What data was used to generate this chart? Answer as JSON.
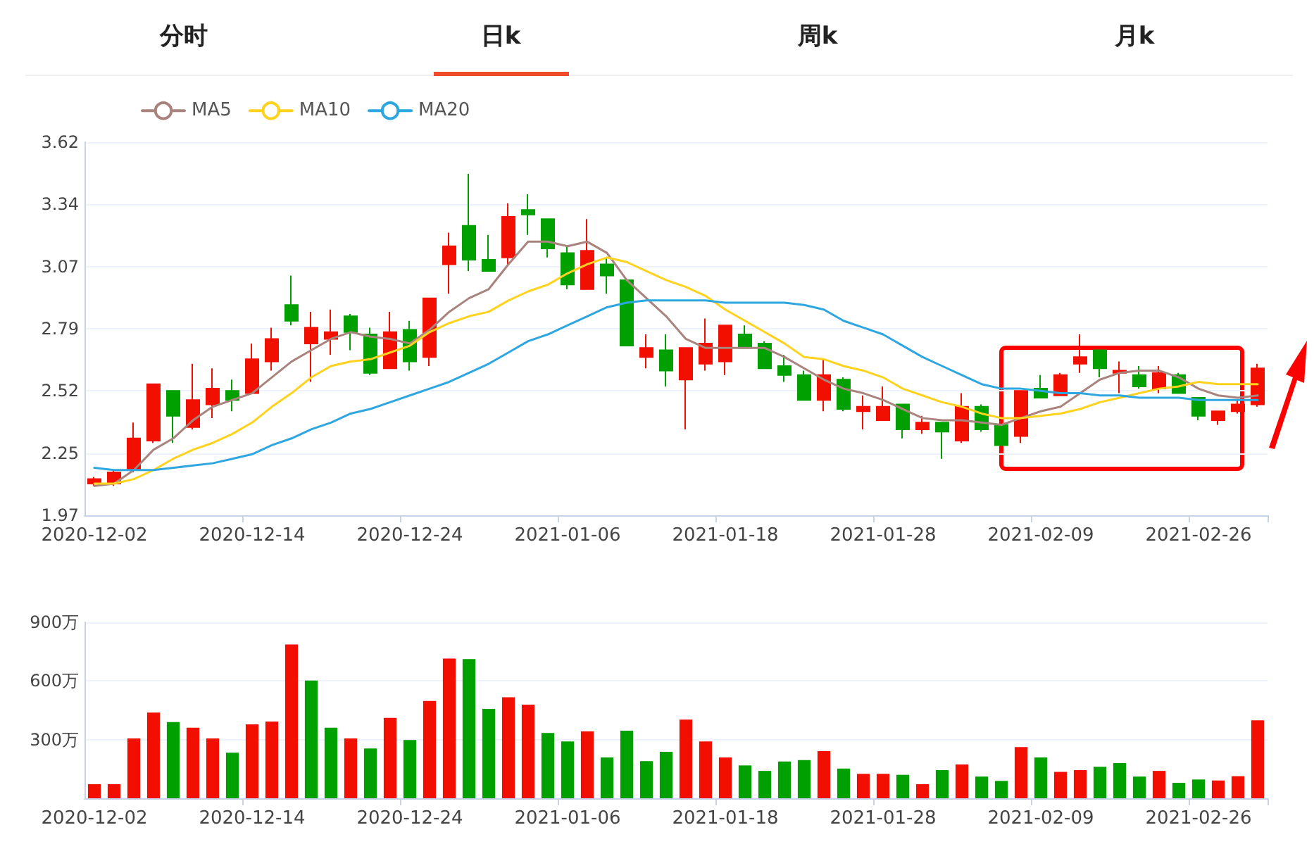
{
  "chart_data": [
    {
      "type": "candlestick",
      "annotations": [
        "分时",
        "日k",
        "周k",
        "月k"
      ],
      "categories": [
        "2020-12-02",
        null,
        null,
        null,
        null,
        null,
        null,
        null,
        "2020-12-14",
        null,
        null,
        null,
        null,
        null,
        null,
        null,
        "2020-12-24",
        null,
        null,
        null,
        null,
        null,
        null,
        null,
        "2021-01-06",
        null,
        null,
        null,
        null,
        null,
        null,
        null,
        "2021-01-18",
        null,
        null,
        null,
        null,
        null,
        null,
        null,
        "2021-01-28",
        null,
        null,
        null,
        null,
        null,
        null,
        null,
        "2021-02-09",
        null,
        null,
        null,
        null,
        null,
        null,
        null,
        "2021-02-26",
        null,
        null,
        null
      ],
      "ylim": [
        1.97,
        3.62
      ],
      "yticks": [
        1.97,
        {
          "value": 2.245,
          "label": "2.25"
        },
        2.52,
        {
          "value": 2.795,
          "label": "2.79"
        },
        3.07,
        {
          "value": 3.345,
          "label": "3.34"
        },
        3.62
      ],
      "grid": "y",
      "legend": "top left",
      "marker": "none",
      "series": [
        {
          "type": "candlestick",
          "ohlc": [
            [
              2.11,
              2.14,
              2.1,
              2.13
            ],
            [
              2.11,
              2.17,
              2.1,
              2.16
            ],
            [
              2.17,
              2.38,
              2.16,
              2.31
            ],
            [
              2.3,
              2.55,
              2.29,
              2.55
            ],
            [
              2.52,
              2.52,
              2.29,
              2.41
            ],
            [
              2.36,
              2.64,
              2.35,
              2.48
            ],
            [
              2.46,
              2.62,
              2.4,
              2.53
            ],
            [
              2.52,
              2.57,
              2.43,
              2.48
            ],
            [
              2.51,
              2.73,
              2.51,
              2.66
            ],
            [
              2.65,
              2.8,
              2.61,
              2.75
            ],
            [
              2.9,
              3.03,
              2.81,
              2.83
            ],
            [
              2.73,
              2.87,
              2.56,
              2.8
            ],
            [
              2.75,
              2.88,
              2.68,
              2.78
            ],
            [
              2.85,
              2.86,
              2.7,
              2.78
            ],
            [
              2.77,
              2.8,
              2.59,
              2.6
            ],
            [
              2.62,
              2.87,
              2.62,
              2.78
            ],
            [
              2.79,
              2.83,
              2.61,
              2.65
            ],
            [
              2.67,
              2.93,
              2.63,
              2.93
            ],
            [
              3.08,
              3.22,
              2.95,
              3.16
            ],
            [
              3.25,
              3.48,
              3.05,
              3.1
            ],
            [
              3.1,
              3.21,
              3.05,
              3.05
            ],
            [
              3.11,
              3.35,
              3.08,
              3.29
            ],
            [
              3.32,
              3.39,
              3.21,
              3.3
            ],
            [
              3.28,
              3.28,
              3.11,
              3.15
            ],
            [
              3.13,
              3.16,
              2.97,
              2.99
            ],
            [
              2.97,
              3.28,
              2.97,
              3.14
            ],
            [
              3.08,
              3.11,
              2.95,
              3.03
            ],
            [
              3.01,
              3.01,
              2.72,
              2.72
            ],
            [
              2.67,
              2.77,
              2.62,
              2.71
            ],
            [
              2.7,
              2.77,
              2.54,
              2.61
            ],
            [
              2.57,
              2.71,
              2.35,
              2.71
            ],
            [
              2.64,
              2.84,
              2.61,
              2.73
            ],
            [
              2.65,
              2.81,
              2.59,
              2.81
            ],
            [
              2.77,
              2.81,
              2.71,
              2.71
            ],
            [
              2.73,
              2.74,
              2.62,
              2.62
            ],
            [
              2.63,
              2.68,
              2.56,
              2.59
            ],
            [
              2.59,
              2.61,
              2.48,
              2.48
            ],
            [
              2.48,
              2.66,
              2.43,
              2.59
            ],
            [
              2.57,
              2.58,
              2.43,
              2.44
            ],
            [
              2.43,
              2.5,
              2.35,
              2.45
            ],
            [
              2.39,
              2.54,
              2.39,
              2.45
            ],
            [
              2.46,
              2.46,
              2.31,
              2.35
            ],
            [
              2.35,
              2.41,
              2.33,
              2.38
            ],
            [
              2.38,
              2.38,
              2.22,
              2.34
            ],
            [
              2.3,
              2.51,
              2.29,
              2.45
            ],
            [
              2.45,
              2.46,
              2.34,
              2.35
            ],
            [
              2.37,
              2.37,
              2.28,
              2.28
            ],
            [
              2.32,
              2.52,
              2.29,
              2.52
            ],
            [
              2.53,
              2.59,
              2.49,
              2.49
            ],
            [
              2.5,
              2.6,
              2.5,
              2.59
            ],
            [
              2.64,
              2.77,
              2.6,
              2.67
            ],
            [
              2.7,
              2.7,
              2.58,
              2.62
            ],
            [
              2.6,
              2.65,
              2.51,
              2.61
            ],
            [
              2.59,
              2.63,
              2.53,
              2.54
            ],
            [
              2.53,
              2.63,
              2.51,
              2.6
            ],
            [
              2.59,
              2.6,
              2.51,
              2.51
            ],
            [
              2.49,
              2.49,
              2.39,
              2.41
            ],
            [
              2.39,
              2.43,
              2.37,
              2.43
            ],
            [
              2.43,
              2.48,
              2.42,
              2.46
            ],
            [
              2.46,
              2.64,
              2.45,
              2.62
            ]
          ],
          "colors": [
            "#f20f00",
            "#f20f00",
            "#f20f00",
            "#f20f00",
            "#00a000",
            "#f20f00",
            "#f20f00",
            "#00a000",
            "#f20f00",
            "#f20f00",
            "#00a000",
            "#f20f00",
            "#f20f00",
            "#00a000",
            "#00a000",
            "#f20f00",
            "#00a000",
            "#f20f00",
            "#f20f00",
            "#00a000",
            "#00a000",
            "#f20f00",
            "#00a000",
            "#00a000",
            "#00a000",
            "#f20f00",
            "#00a000",
            "#00a000",
            "#f20f00",
            "#00a000",
            "#f20f00",
            "#f20f00",
            "#f20f00",
            "#00a000",
            "#00a000",
            "#00a000",
            "#00a000",
            "#f20f00",
            "#00a000",
            "#f20f00",
            "#f20f00",
            "#00a000",
            "#f20f00",
            "#00a000",
            "#f20f00",
            "#00a000",
            "#00a000",
            "#f20f00",
            "#00a000",
            "#f20f00",
            "#f20f00",
            "#00a000",
            "#f20f00",
            "#00a000",
            "#f20f00",
            "#00a000",
            "#00a000",
            "#f20f00",
            "#f20f00",
            "#f20f00"
          ]
        },
        {
          "type": "line",
          "name": "MA5",
          "color": "#a9847e",
          "values": [
            2.1,
            2.11,
            2.17,
            2.26,
            2.31,
            2.39,
            2.45,
            2.48,
            2.51,
            2.58,
            2.65,
            2.7,
            2.75,
            2.78,
            2.76,
            2.75,
            2.73,
            2.79,
            2.87,
            2.93,
            2.97,
            3.08,
            3.18,
            3.18,
            3.16,
            3.18,
            3.13,
            3.01,
            2.93,
            2.85,
            2.75,
            2.71,
            2.71,
            2.71,
            2.71,
            2.67,
            2.62,
            2.57,
            2.53,
            2.51,
            2.48,
            2.44,
            2.4,
            2.39,
            2.39,
            2.38,
            2.37,
            2.4,
            2.43,
            2.45,
            2.51,
            2.57,
            2.6,
            2.61,
            2.61,
            2.58,
            2.53,
            2.5,
            2.49,
            2.5
          ]
        },
        {
          "type": "line",
          "name": "MA10",
          "color": "#ffd21e",
          "values": [
            2.11,
            2.11,
            2.13,
            2.17,
            2.22,
            2.26,
            2.29,
            2.33,
            2.38,
            2.45,
            2.51,
            2.58,
            2.63,
            2.65,
            2.66,
            2.69,
            2.72,
            2.78,
            2.82,
            2.85,
            2.87,
            2.92,
            2.96,
            2.99,
            3.04,
            3.08,
            3.11,
            3.09,
            3.05,
            3.01,
            2.98,
            2.94,
            2.88,
            2.83,
            2.78,
            2.73,
            2.67,
            2.66,
            2.63,
            2.61,
            2.58,
            2.53,
            2.5,
            2.47,
            2.45,
            2.42,
            2.4,
            2.4,
            2.41,
            2.42,
            2.44,
            2.47,
            2.49,
            2.51,
            2.53,
            2.54,
            2.56,
            2.55,
            2.55,
            2.55
          ]
        },
        {
          "type": "line",
          "name": "MA20",
          "color": "#2ea7e0",
          "values": [
            2.18,
            2.17,
            2.17,
            2.17,
            2.18,
            2.19,
            2.2,
            2.22,
            2.24,
            2.28,
            2.31,
            2.35,
            2.38,
            2.42,
            2.44,
            2.47,
            2.5,
            2.53,
            2.56,
            2.6,
            2.64,
            2.69,
            2.74,
            2.77,
            2.81,
            2.85,
            2.89,
            2.91,
            2.92,
            2.92,
            2.92,
            2.92,
            2.91,
            2.91,
            2.91,
            2.91,
            2.9,
            2.88,
            2.83,
            2.8,
            2.77,
            2.72,
            2.67,
            2.63,
            2.59,
            2.55,
            2.53,
            2.53,
            2.52,
            2.51,
            2.51,
            2.5,
            2.5,
            2.49,
            2.49,
            2.49,
            2.48,
            2.48,
            2.48,
            2.48
          ]
        }
      ]
    },
    {
      "type": "bar",
      "categories": [
        "2020-12-02",
        null,
        null,
        null,
        null,
        null,
        null,
        null,
        "2020-12-14",
        null,
        null,
        null,
        null,
        null,
        null,
        null,
        "2020-12-24",
        null,
        null,
        null,
        null,
        null,
        null,
        null,
        "2021-01-06",
        null,
        null,
        null,
        null,
        null,
        null,
        null,
        "2021-01-18",
        null,
        null,
        null,
        null,
        null,
        null,
        null,
        "2021-01-28",
        null,
        null,
        null,
        null,
        null,
        null,
        null,
        "2021-02-09",
        null,
        null,
        null,
        null,
        null,
        null,
        null,
        "2021-02-26",
        null,
        null,
        null
      ],
      "ylim": [
        0,
        900
      ],
      "yticks": [
        {
          "value": 0,
          "label": null
        },
        {
          "value": 300,
          "label": "300万"
        },
        {
          "value": 600,
          "label": "600万"
        },
        {
          "value": 900,
          "label": "900万"
        }
      ],
      "grid": "y",
      "values": [
        72,
        72,
        306,
        438,
        390,
        361,
        306,
        233,
        378,
        392,
        787,
        602,
        361,
        306,
        255,
        411,
        298,
        498,
        715,
        712,
        457,
        517,
        479,
        334,
        291,
        342,
        209,
        346,
        190,
        238,
        402,
        291,
        209,
        168,
        140,
        188,
        195,
        241,
        152,
        125,
        125,
        120,
        72,
        144,
        173,
        111,
        89,
        262,
        209,
        135,
        144,
        161,
        180,
        111,
        140,
        79,
        96,
        91,
        113,
        399
      ],
      "colors": [
        "#f20f00",
        "#f20f00",
        "#f20f00",
        "#f20f00",
        "#00a000",
        "#f20f00",
        "#f20f00",
        "#00a000",
        "#f20f00",
        "#f20f00",
        "#f20f00",
        "#00a000",
        "#00a000",
        "#f20f00",
        "#00a000",
        "#f20f00",
        "#00a000",
        "#f20f00",
        "#f20f00",
        "#00a000",
        "#00a000",
        "#f20f00",
        "#f20f00",
        "#00a000",
        "#00a000",
        "#f20f00",
        "#00a000",
        "#00a000",
        "#00a000",
        "#00a000",
        "#f20f00",
        "#f20f00",
        "#f20f00",
        "#00a000",
        "#00a000",
        "#00a000",
        "#00a000",
        "#f20f00",
        "#00a000",
        "#f20f00",
        "#f20f00",
        "#00a000",
        "#f20f00",
        "#00a000",
        "#f20f00",
        "#00a000",
        "#00a000",
        "#f20f00",
        "#00a000",
        "#f20f00",
        "#f20f00",
        "#00a000",
        "#00a000",
        "#00a000",
        "#f20f00",
        "#00a000",
        "#00a000",
        "#f20f00",
        "#f20f00",
        "#f20f00"
      ]
    }
  ]
}
